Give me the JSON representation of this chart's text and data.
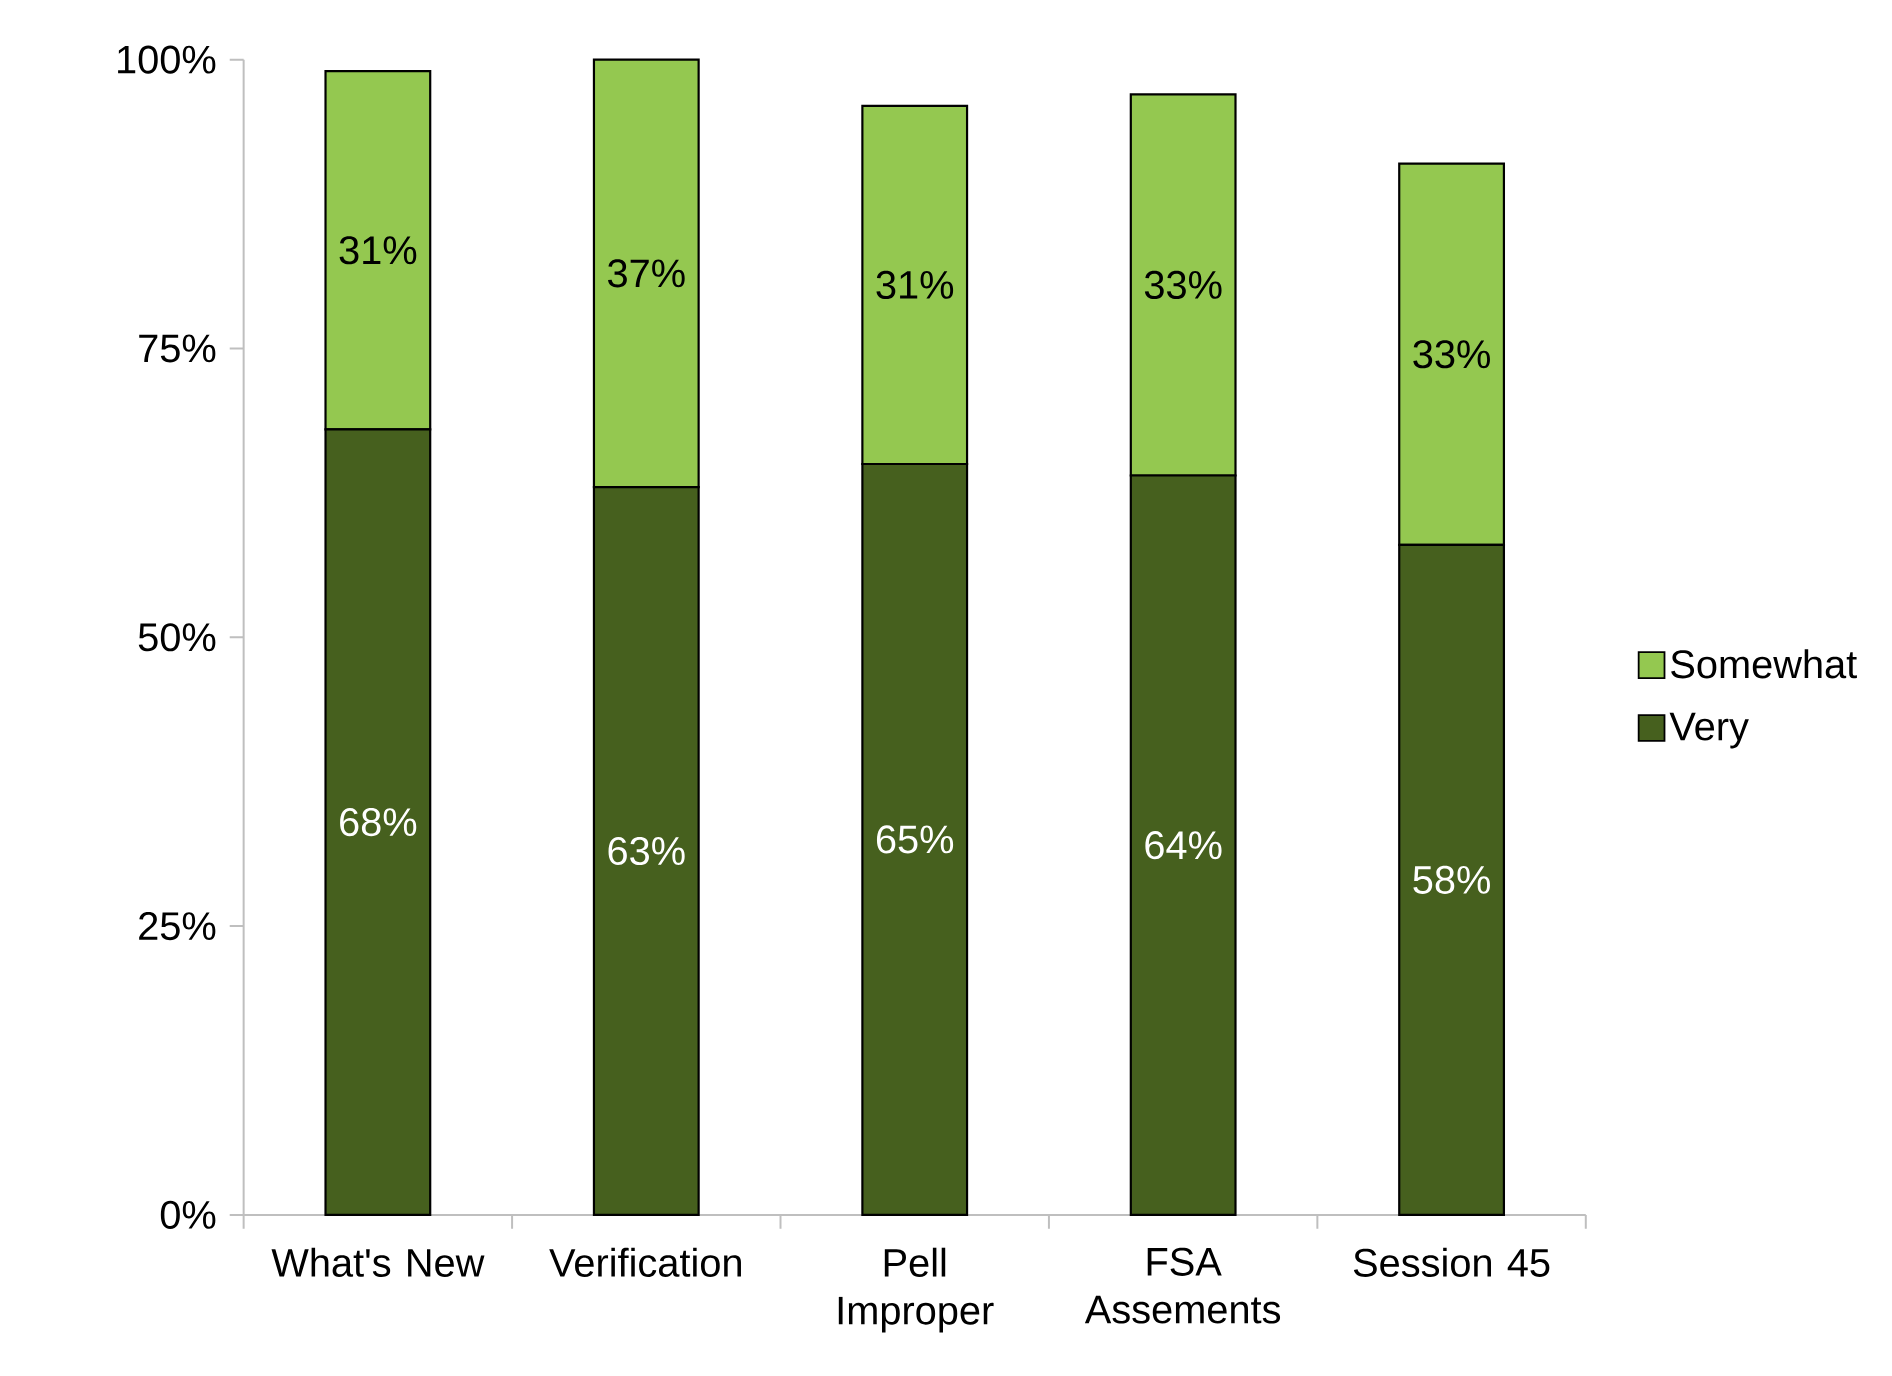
{
  "chart_data": {
    "type": "bar",
    "stacked": true,
    "categories": [
      "What's New",
      "Verification",
      "Pell Improper",
      "FSA Assements",
      "Session 45"
    ],
    "series": [
      {
        "name": "Very",
        "color": "#46601e",
        "values": [
          68,
          63,
          65,
          64,
          58
        ],
        "value_labels": [
          "68%",
          "63%",
          "65%",
          "64%",
          "58%"
        ]
      },
      {
        "name": "Somewhat",
        "color": "#94c850",
        "values": [
          31,
          37,
          31,
          33,
          33
        ],
        "value_labels": [
          "31%",
          "37%",
          "31%",
          "33%",
          "33%"
        ]
      }
    ],
    "ylim": [
      0,
      100
    ],
    "yticks": [
      {
        "value": 0,
        "label": "0%"
      },
      {
        "value": 25,
        "label": "25%"
      },
      {
        "value": 50,
        "label": "50%"
      },
      {
        "value": 75,
        "label": "75%"
      },
      {
        "value": 100,
        "label": "100%"
      }
    ],
    "legend": "right"
  }
}
